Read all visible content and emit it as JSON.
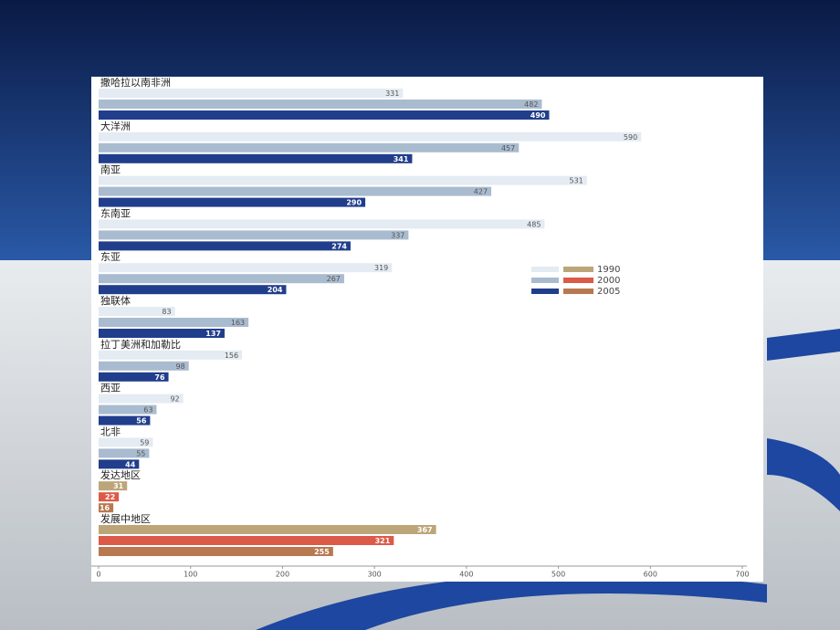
{
  "chart_data": {
    "type": "bar",
    "orientation": "horizontal",
    "categories": [
      "撒哈拉以南非洲",
      "大洋洲",
      "南亚",
      "东南亚",
      "东亚",
      "独联体",
      "拉丁美洲和加勒比",
      "西亚",
      "北非",
      "发达地区",
      "发展中地区"
    ],
    "series": [
      {
        "name": "1990",
        "values": [
          331,
          590,
          531,
          485,
          319,
          83,
          156,
          92,
          59,
          31,
          367
        ],
        "colors": [
          "#e4ebf2",
          "#e4ebf2",
          "#e4ebf2",
          "#e4ebf2",
          "#e4ebf2",
          "#e4ebf2",
          "#e4ebf2",
          "#e4ebf2",
          "#e4ebf2",
          "#bca679",
          "#bca679"
        ]
      },
      {
        "name": "2000",
        "values": [
          482,
          457,
          427,
          337,
          267,
          163,
          98,
          63,
          55,
          22,
          321
        ],
        "colors": [
          "#a9bbcf",
          "#a9bbcf",
          "#a9bbcf",
          "#a9bbcf",
          "#a9bbcf",
          "#a9bbcf",
          "#a9bbcf",
          "#a9bbcf",
          "#a9bbcf",
          "#dc5a48",
          "#dc5a48"
        ]
      },
      {
        "name": "2005",
        "values": [
          490,
          341,
          290,
          274,
          204,
          137,
          76,
          56,
          44,
          16,
          255
        ],
        "colors": [
          "#213e8c",
          "#213e8c",
          "#213e8c",
          "#213e8c",
          "#213e8c",
          "#213e8c",
          "#213e8c",
          "#213e8c",
          "#213e8c",
          "#b87850",
          "#b87850"
        ]
      }
    ],
    "xlim": [
      0,
      700
    ],
    "xticks": [
      0,
      100,
      200,
      300,
      400,
      500,
      600,
      700
    ]
  }
}
